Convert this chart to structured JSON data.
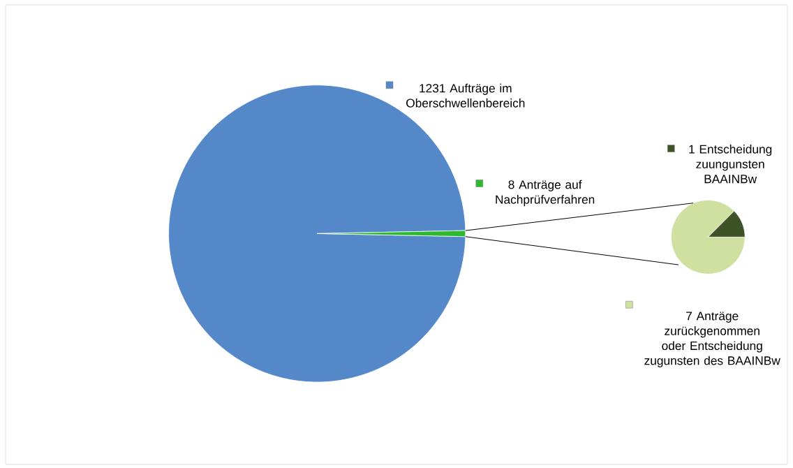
{
  "chart_data": [
    {
      "type": "pie",
      "categories": [
        "1231 Aufträge im Oberschwellenbereich",
        "8 Anträge auf Nachprüfverfahren"
      ],
      "values": [
        1231,
        8
      ],
      "colors": [
        "#5588c8",
        "#2eb82e"
      ],
      "legend": "top right"
    },
    {
      "type": "pie",
      "categories": [
        "7 Anträge zurückgenommen oder Entscheidung zugunsten des BAAINBw",
        "1 Entscheidung zuungunsten BAAINBw"
      ],
      "values": [
        7,
        1
      ],
      "colors": [
        "#cfe0a0",
        "#3d5226"
      ],
      "legend": "right"
    }
  ]
}
